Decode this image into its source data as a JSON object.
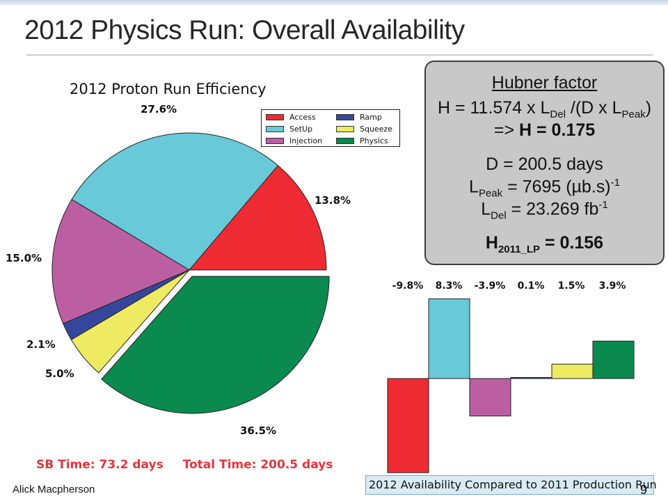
{
  "slide": {
    "title": "2012 Physics Run: Overall Availability",
    "author": "Alick Macpherson",
    "page_number": "9"
  },
  "chart_data": [
    {
      "type": "pie",
      "title": "2012 Proton Run Efficiency",
      "legend_position": "top-right",
      "slices": [
        {
          "name": "Access",
          "value": 13.8,
          "label": "13.8%",
          "color": "#ee2b33"
        },
        {
          "name": "SetUp",
          "value": 27.6,
          "label": "27.6%",
          "color": "#68c9d8"
        },
        {
          "name": "Injection",
          "value": 15.0,
          "label": "15.0%",
          "color": "#bc5fa2"
        },
        {
          "name": "Ramp",
          "value": 2.1,
          "label": "2.1%",
          "color": "#35479c"
        },
        {
          "name": "Squeeze",
          "value": 5.0,
          "label": "5.0%",
          "color": "#eeea62"
        },
        {
          "name": "Physics",
          "value": 36.5,
          "label": "36.5%",
          "color": "#0a8a4e",
          "exploded": true
        }
      ],
      "summary": {
        "sb_time": "SB Time: 73.2 days",
        "total_time": "Total Time: 200.5 days"
      }
    },
    {
      "type": "bar",
      "title": "2012 Availability Compared to 2011 Production Run",
      "categories": [
        "Access",
        "SetUp",
        "Injection",
        "Ramp",
        "Squeeze",
        "Physics"
      ],
      "values": [
        -9.8,
        8.3,
        -3.9,
        0.1,
        1.5,
        3.9
      ],
      "labels": [
        "-9.8%",
        "8.3%",
        "-3.9%",
        "0.1%",
        "1.5%",
        "3.9%"
      ],
      "colors": [
        "#ee2b33",
        "#68c9d8",
        "#bc5fa2",
        "#35479c",
        "#eeea62",
        "#0a8a4e"
      ],
      "ylim": [
        -10,
        8.5
      ]
    }
  ],
  "hubner": {
    "title": "Hubner factor",
    "formula": {
      "lhs": "H = 11.574 x L",
      "sub1": "Del",
      "mid": " /(D x L",
      "sub2": "Peak",
      "rhs": ")"
    },
    "result": {
      "prefix": "=> ",
      "value": "H = 0.175"
    },
    "duration": "D = 200.5 days",
    "lpeak": {
      "symbol": "L",
      "sub": "Peak",
      "value": " = 7695  (µb.s)",
      "sup": "-1"
    },
    "ldel": {
      "symbol": "L",
      "sub": "Del",
      "value": " = 23.269 fb",
      "sup": "-1"
    },
    "h2011": {
      "symbol": "H",
      "sub": "2011_LP",
      "value": " = 0.156"
    }
  }
}
